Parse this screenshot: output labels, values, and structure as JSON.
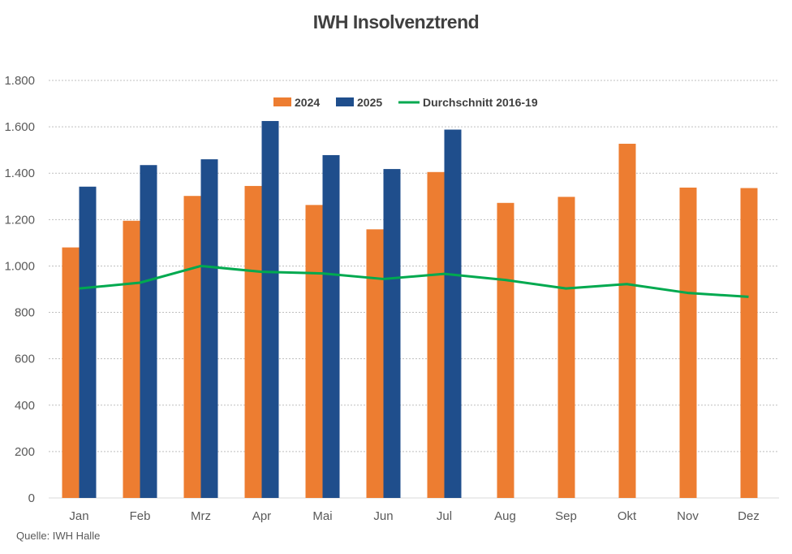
{
  "chart_data": {
    "type": "bar",
    "title": "IWH Insolvenztrend",
    "categories": [
      "Jan",
      "Feb",
      "Mrz",
      "Apr",
      "Mai",
      "Jun",
      "Jul",
      "Aug",
      "Sep",
      "Okt",
      "Nov",
      "Dez"
    ],
    "series": [
      {
        "name": "2024",
        "type": "bar",
        "color": "#ED7D31",
        "values": [
          1080,
          1195,
          1302,
          1345,
          1263,
          1158,
          1405,
          1272,
          1298,
          1527,
          1338,
          1336
        ]
      },
      {
        "name": "2025",
        "type": "bar",
        "color": "#1F4E8C",
        "values": [
          1342,
          1435,
          1460,
          1625,
          1478,
          1418,
          1588,
          null,
          null,
          null,
          null,
          null
        ]
      },
      {
        "name": "Durchschnitt 2016-19",
        "type": "line",
        "color": "#00A94F",
        "values": [
          903,
          928,
          1000,
          975,
          968,
          944,
          966,
          940,
          903,
          922,
          884,
          867
        ]
      }
    ],
    "ylim": [
      0,
      1800
    ],
    "yticks": [
      0,
      200,
      400,
      600,
      800,
      1000,
      1200,
      1400,
      1600,
      1800
    ],
    "ytick_labels": [
      "0",
      "200",
      "400",
      "600",
      "800",
      "1.000",
      "1.200",
      "1.400",
      "1.600",
      "1.800"
    ],
    "grid": true,
    "legend": "top-center"
  },
  "source": "Quelle: IWH Halle"
}
